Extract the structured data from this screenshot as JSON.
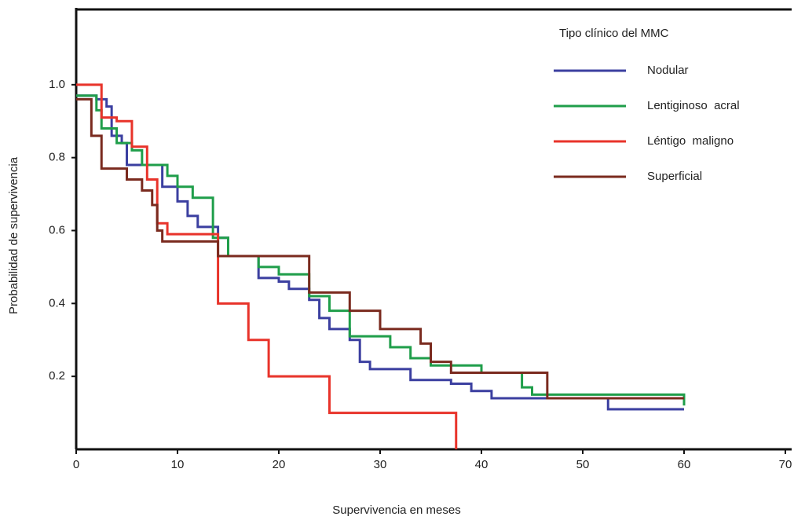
{
  "chart_data": {
    "type": "step",
    "xlabel": "Supervivencia en meses",
    "ylabel": "Probabilidad de supervivencia",
    "legend_title": "Tipo clínico del MMC",
    "legend_position": "upper right",
    "xlim": [
      0,
      70
    ],
    "xticks": [
      0,
      10,
      20,
      30,
      40,
      50,
      60,
      70
    ],
    "ylim": [
      0,
      1.2
    ],
    "yticks": [
      0.2,
      0.4,
      0.6,
      0.8,
      {
        "value": 1,
        "label": "1.0"
      }
    ],
    "series": [
      {
        "name": "Nodular",
        "color": "#3b3fa0",
        "x": [
          0,
          2,
          3,
          3.5,
          4.5,
          5,
          8.5,
          10,
          11,
          12,
          14,
          15,
          18,
          20,
          21,
          23,
          24,
          25,
          27,
          28,
          29,
          33,
          37,
          39,
          41,
          52.5,
          60
        ],
        "values": [
          0.97,
          0.96,
          0.94,
          0.86,
          0.84,
          0.78,
          0.72,
          0.68,
          0.64,
          0.61,
          0.58,
          0.53,
          0.47,
          0.46,
          0.44,
          0.41,
          0.36,
          0.33,
          0.3,
          0.24,
          0.22,
          0.19,
          0.18,
          0.16,
          0.14,
          0.11,
          0.11
        ]
      },
      {
        "name": "Lentiginoso  acral",
        "color": "#1f9e4a",
        "x": [
          0,
          2,
          2.5,
          4,
          5.5,
          6.5,
          9,
          10,
          11.5,
          13.5,
          15,
          18,
          20,
          23,
          25,
          27,
          31,
          33,
          35,
          40,
          44,
          45,
          60
        ],
        "values": [
          0.97,
          0.93,
          0.88,
          0.84,
          0.82,
          0.78,
          0.75,
          0.72,
          0.69,
          0.58,
          0.53,
          0.5,
          0.48,
          0.42,
          0.38,
          0.31,
          0.28,
          0.25,
          0.23,
          0.21,
          0.17,
          0.15,
          0.12
        ]
      },
      {
        "name": "Léntigo  maligno",
        "color": "#e8332a",
        "x": [
          0,
          2.5,
          4,
          5.5,
          7,
          8,
          9,
          14,
          17,
          19,
          25,
          37.5
        ],
        "values": [
          1,
          0.91,
          0.9,
          0.83,
          0.74,
          0.62,
          0.59,
          0.4,
          0.3,
          0.2,
          0.1,
          0
        ]
      },
      {
        "name": "Superficial",
        "color": "#7a2a1e",
        "x": [
          0,
          1.5,
          2.5,
          5,
          6.5,
          7.5,
          8,
          8.5,
          14,
          23,
          27,
          30,
          34,
          35,
          37,
          46.5,
          60
        ],
        "values": [
          0.96,
          0.86,
          0.77,
          0.74,
          0.71,
          0.67,
          0.6,
          0.57,
          0.53,
          0.43,
          0.38,
          0.33,
          0.29,
          0.24,
          0.21,
          0.14,
          0.14
        ]
      }
    ]
  }
}
